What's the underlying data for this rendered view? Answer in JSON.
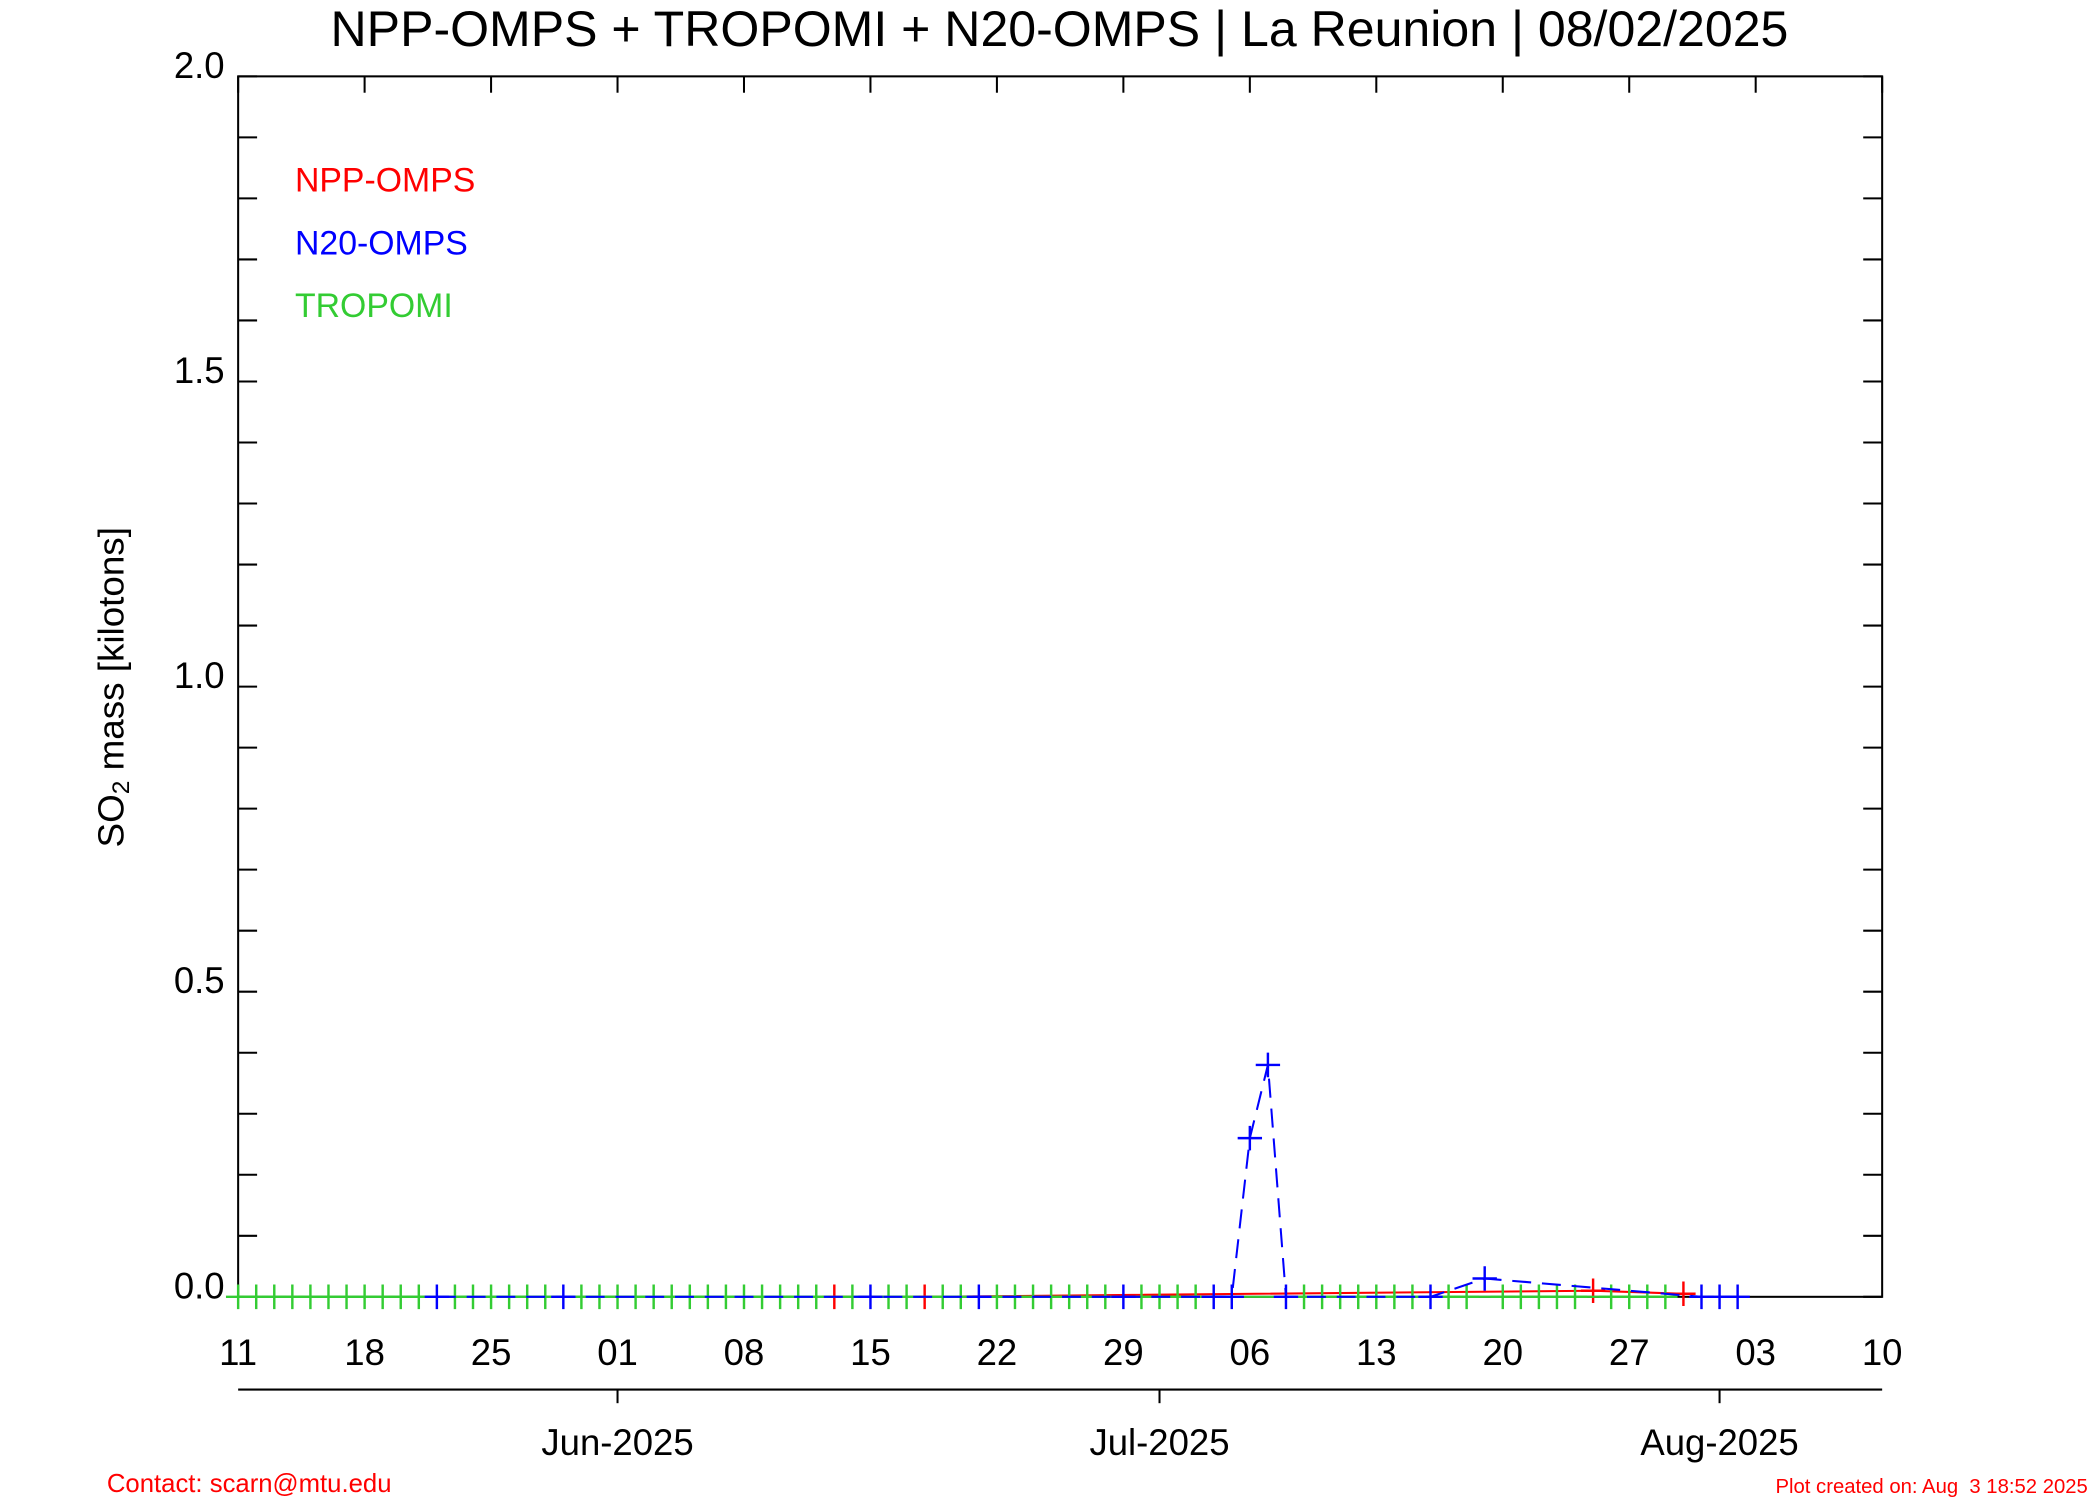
{
  "chart_data": {
    "type": "line",
    "title": "NPP-OMPS + TROPOMI + N20-OMPS | La Reunion | 08/02/2025",
    "ylabel_parts": [
      "SO",
      "2",
      " mass [kilotons]"
    ],
    "ylim": [
      0,
      2
    ],
    "yticks": [
      {
        "value": 0,
        "label": "0.0"
      },
      {
        "value": 0.5,
        "label": "0.5"
      },
      {
        "value": 1,
        "label": "1.0"
      },
      {
        "value": 1.5,
        "label": "1.5"
      },
      {
        "value": 2,
        "label": "2.0"
      }
    ],
    "yminorticks": [
      0.1,
      0.2,
      0.3,
      0.4,
      0.6,
      0.7,
      0.8,
      0.9,
      1.1,
      1.2,
      1.3,
      1.4,
      1.6,
      1.7,
      1.8,
      1.9
    ],
    "xlim": [
      "2025-05-11",
      "2025-08-10"
    ],
    "xticks": [
      {
        "value": "2025-05-11",
        "label": "11"
      },
      {
        "value": "2025-05-18",
        "label": "18"
      },
      {
        "value": "2025-05-25",
        "label": "25"
      },
      {
        "value": "2025-06-01",
        "label": "01"
      },
      {
        "value": "2025-06-08",
        "label": "08"
      },
      {
        "value": "2025-06-15",
        "label": "15"
      },
      {
        "value": "2025-06-22",
        "label": "22"
      },
      {
        "value": "2025-06-29",
        "label": "29"
      },
      {
        "value": "2025-07-06",
        "label": "06"
      },
      {
        "value": "2025-07-13",
        "label": "13"
      },
      {
        "value": "2025-07-20",
        "label": "20"
      },
      {
        "value": "2025-07-27",
        "label": "27"
      },
      {
        "value": "2025-08-03",
        "label": "03"
      },
      {
        "value": "2025-08-10",
        "label": "10"
      }
    ],
    "monthticks": [
      {
        "value": "2025-06-01",
        "label": "Jun-2025"
      },
      {
        "value": "2025-07-01",
        "label": "Jul-2025"
      },
      {
        "value": "2025-08-01",
        "label": "Aug-2025"
      }
    ],
    "series": [
      {
        "name": "NPP-OMPS",
        "color": "#ff0000",
        "dash": false,
        "x": [
          "2025-06-13",
          "2025-06-18",
          "2025-07-25",
          "2025-07-30"
        ],
        "values": [
          0,
          0,
          0.01,
          0.005
        ]
      },
      {
        "name": "N20-OMPS",
        "color": "#0000ff",
        "dash": true,
        "x": [
          "2025-05-22",
          "2025-05-29",
          "2025-06-15",
          "2025-06-21",
          "2025-06-29",
          "2025-07-04",
          "2025-07-05",
          "2025-07-06",
          "2025-07-07",
          "2025-07-08",
          "2025-07-16",
          "2025-07-19",
          "2025-07-31",
          "2025-08-01",
          "2025-08-02"
        ],
        "values": [
          0,
          0,
          0,
          0,
          0,
          0,
          0,
          0.26,
          0.38,
          0,
          0,
          0.03,
          0,
          0,
          0
        ]
      },
      {
        "name": "TROPOMI",
        "color": "#33cc33",
        "dash": false,
        "x": [
          "2025-05-11",
          "2025-05-12",
          "2025-05-13",
          "2025-05-14",
          "2025-05-15",
          "2025-05-16",
          "2025-05-17",
          "2025-05-18",
          "2025-05-19",
          "2025-05-20",
          "2025-05-21",
          "2025-05-23",
          "2025-05-24",
          "2025-05-25",
          "2025-05-26",
          "2025-05-27",
          "2025-05-28",
          "2025-05-30",
          "2025-05-31",
          "2025-06-01",
          "2025-06-02",
          "2025-06-03",
          "2025-06-04",
          "2025-06-05",
          "2025-06-06",
          "2025-06-07",
          "2025-06-08",
          "2025-06-09",
          "2025-06-10",
          "2025-06-11",
          "2025-06-12",
          "2025-06-14",
          "2025-06-16",
          "2025-06-17",
          "2025-06-19",
          "2025-06-20",
          "2025-06-22",
          "2025-06-23",
          "2025-06-24",
          "2025-06-25",
          "2025-06-26",
          "2025-06-27",
          "2025-06-28",
          "2025-06-30",
          "2025-07-01",
          "2025-07-02",
          "2025-07-03",
          "2025-07-09",
          "2025-07-10",
          "2025-07-11",
          "2025-07-12",
          "2025-07-13",
          "2025-07-14",
          "2025-07-15",
          "2025-07-17",
          "2025-07-18",
          "2025-07-20",
          "2025-07-21",
          "2025-07-22",
          "2025-07-23",
          "2025-07-24",
          "2025-07-26",
          "2025-07-27",
          "2025-07-28",
          "2025-07-29"
        ],
        "values": [
          0,
          0,
          0,
          0,
          0,
          0,
          0,
          0,
          0,
          0,
          0,
          0,
          0,
          0,
          0,
          0,
          0,
          0,
          0,
          0,
          0,
          0,
          0,
          0,
          0,
          0,
          0,
          0,
          0,
          0,
          0,
          0,
          0,
          0,
          0,
          0,
          0,
          0,
          0,
          0,
          0,
          0,
          0,
          0,
          0,
          0,
          0,
          0,
          0,
          0,
          0,
          0,
          0,
          0,
          0,
          0,
          0,
          0,
          0,
          0,
          0,
          0,
          0,
          0,
          0
        ]
      }
    ],
    "footer_left": "Contact: scarn@mtu.edu",
    "footer_right": "Plot created on: Aug  3 18:52 2025"
  }
}
